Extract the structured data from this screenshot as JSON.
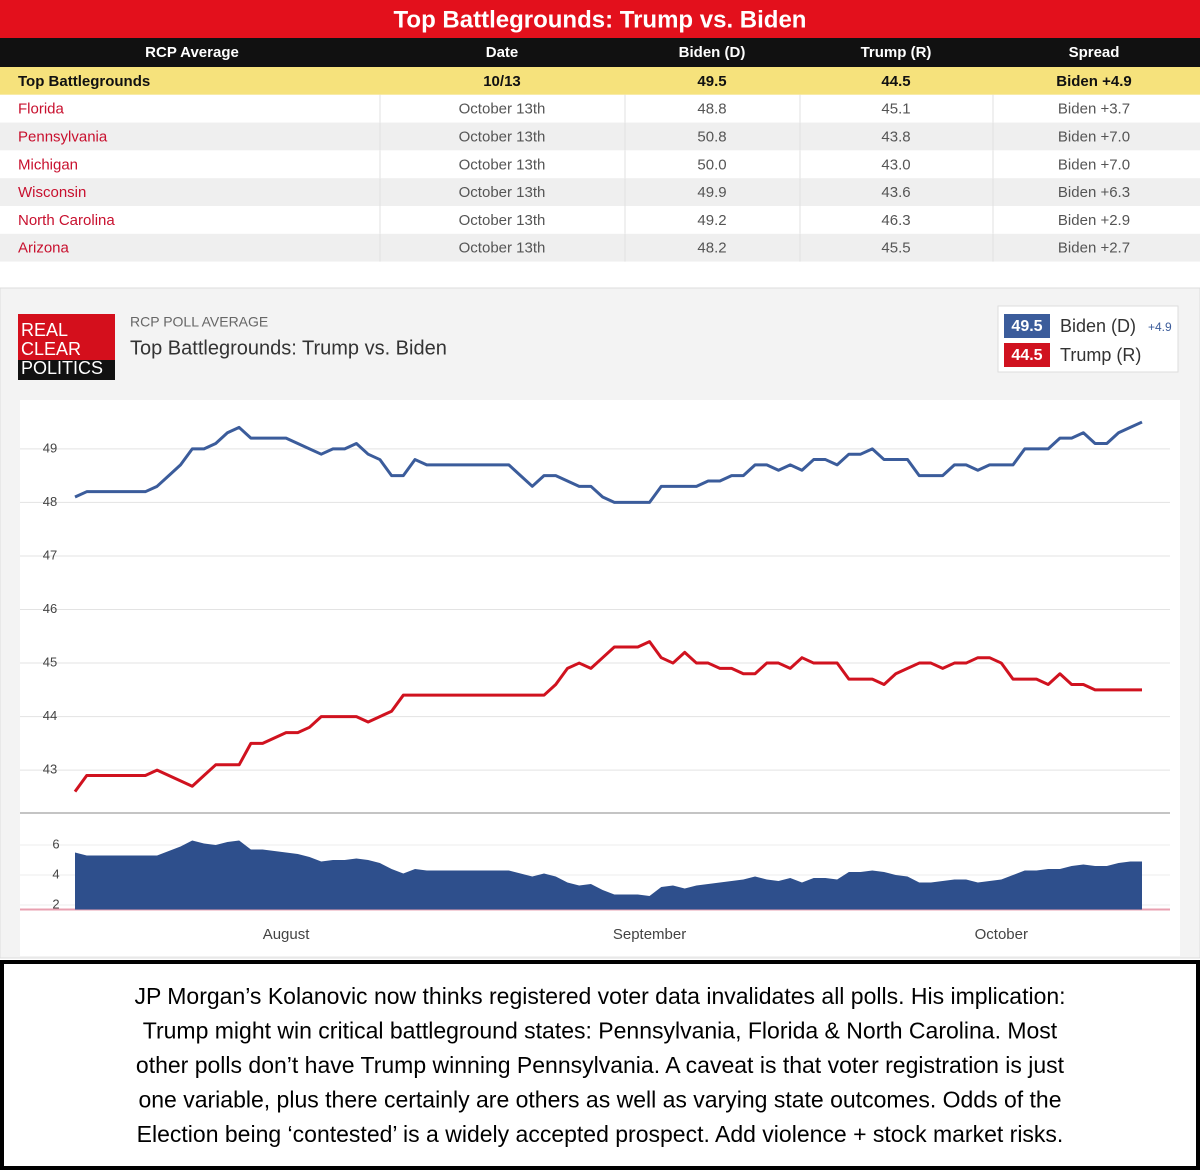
{
  "table": {
    "title": "Top Battlegrounds: Trump vs. Biden",
    "header": [
      "RCP Average",
      "Date",
      "Biden (D)",
      "Trump (R)",
      "Spread"
    ],
    "rows": [
      [
        "Top Battlegrounds",
        "10/13",
        "49.5",
        "44.5",
        "Biden +4.9"
      ],
      [
        "Florida",
        "October 13th",
        "48.8",
        "45.1",
        "Biden +3.7"
      ],
      [
        "Pennsylvania",
        "October 13th",
        "50.8",
        "43.8",
        "Biden +7.0"
      ],
      [
        "Michigan",
        "October 13th",
        "50.0",
        "43.0",
        "Biden +7.0"
      ],
      [
        "Wisconsin",
        "October 13th",
        "49.9",
        "43.6",
        "Biden +6.3"
      ],
      [
        "North Carolina",
        "October 13th",
        "49.2",
        "46.3",
        "Biden +2.9"
      ],
      [
        "Arizona",
        "October 13th",
        "48.2",
        "45.5",
        "Biden +2.7"
      ]
    ]
  },
  "logo": [
    "REAL",
    "CLEAR",
    "POLITICS"
  ],
  "chart_data": {
    "type": "line",
    "subtitle": "RCP POLL AVERAGE",
    "title": "Top Battlegrounds: Trump vs. Biden",
    "categories": [
      null,
      null,
      null,
      null,
      null,
      null,
      null,
      null,
      null,
      null,
      null,
      null,
      null,
      null,
      null,
      null,
      null,
      null,
      "August",
      null,
      null,
      null,
      null,
      null,
      null,
      null,
      null,
      null,
      null,
      null,
      null,
      null,
      null,
      null,
      null,
      null,
      null,
      null,
      null,
      null,
      null,
      null,
      null,
      null,
      null,
      null,
      null,
      null,
      null,
      "September",
      null,
      null,
      null,
      null,
      null,
      null,
      null,
      null,
      null,
      null,
      null,
      null,
      null,
      null,
      null,
      null,
      null,
      null,
      null,
      null,
      null,
      null,
      null,
      null,
      null,
      null,
      null,
      null,
      null,
      "October",
      null,
      null,
      null,
      null,
      null,
      null,
      null,
      null,
      null,
      null,
      null,
      null
    ],
    "series": [
      {
        "name": "Biden (D)",
        "color": "#3b5c9b",
        "latest": "49.5",
        "spread_label": "+4.9",
        "values": [
          48.1,
          48.2,
          48.2,
          48.2,
          48.2,
          48.2,
          48.2,
          48.3,
          48.5,
          48.7,
          49.0,
          49.0,
          49.1,
          49.3,
          49.4,
          49.2,
          49.2,
          49.2,
          49.2,
          49.1,
          49.0,
          48.9,
          49.0,
          49.0,
          49.1,
          48.9,
          48.8,
          48.5,
          48.5,
          48.8,
          48.7,
          48.7,
          48.7,
          48.7,
          48.7,
          48.7,
          48.7,
          48.7,
          48.5,
          48.3,
          48.5,
          48.5,
          48.4,
          48.3,
          48.3,
          48.1,
          48.0,
          48.0,
          48.0,
          48.0,
          48.3,
          48.3,
          48.3,
          48.3,
          48.4,
          48.4,
          48.5,
          48.5,
          48.7,
          48.7,
          48.6,
          48.7,
          48.6,
          48.8,
          48.8,
          48.7,
          48.9,
          48.9,
          49.0,
          48.8,
          48.8,
          48.8,
          48.5,
          48.5,
          48.5,
          48.7,
          48.7,
          48.6,
          48.7,
          48.7,
          48.7,
          49.0,
          49.0,
          49.0,
          49.2,
          49.2,
          49.3,
          49.1,
          49.1,
          49.3,
          49.4,
          49.5
        ]
      },
      {
        "name": "Trump (R)",
        "color": "#d0121f",
        "latest": "44.5",
        "values": [
          42.6,
          42.9,
          42.9,
          42.9,
          42.9,
          42.9,
          42.9,
          43.0,
          42.9,
          42.8,
          42.7,
          42.9,
          43.1,
          43.1,
          43.1,
          43.5,
          43.5,
          43.6,
          43.7,
          43.7,
          43.8,
          44.0,
          44.0,
          44.0,
          44.0,
          43.9,
          44.0,
          44.1,
          44.4,
          44.4,
          44.4,
          44.4,
          44.4,
          44.4,
          44.4,
          44.4,
          44.4,
          44.4,
          44.4,
          44.4,
          44.4,
          44.6,
          44.9,
          45.0,
          44.9,
          45.1,
          45.3,
          45.3,
          45.3,
          45.4,
          45.1,
          45.0,
          45.2,
          45.0,
          45.0,
          44.9,
          44.9,
          44.8,
          44.8,
          45.0,
          45.0,
          44.9,
          45.1,
          45.0,
          45.0,
          45.0,
          44.7,
          44.7,
          44.7,
          44.6,
          44.8,
          44.9,
          45.0,
          45.0,
          44.9,
          45.0,
          45.0,
          45.1,
          45.1,
          45.0,
          44.7,
          44.7,
          44.7,
          44.6,
          44.8,
          44.6,
          44.6,
          44.5,
          44.5,
          44.5,
          44.5,
          44.5
        ]
      },
      {
        "axis": "y2",
        "kind": "area",
        "color": "#2e4f8c",
        "values": [
          5.5,
          5.3,
          5.3,
          5.3,
          5.3,
          5.3,
          5.3,
          5.3,
          5.6,
          5.9,
          6.3,
          6.1,
          6.0,
          6.2,
          6.3,
          5.7,
          5.7,
          5.6,
          5.5,
          5.4,
          5.2,
          4.9,
          5.0,
          5.0,
          5.1,
          5.0,
          4.8,
          4.4,
          4.1,
          4.4,
          4.3,
          4.3,
          4.3,
          4.3,
          4.3,
          4.3,
          4.3,
          4.3,
          4.1,
          3.9,
          4.1,
          3.9,
          3.5,
          3.3,
          3.4,
          3.0,
          2.7,
          2.7,
          2.7,
          2.6,
          3.2,
          3.3,
          3.1,
          3.3,
          3.4,
          3.5,
          3.6,
          3.7,
          3.9,
          3.7,
          3.6,
          3.8,
          3.5,
          3.8,
          3.8,
          3.7,
          4.2,
          4.2,
          4.3,
          4.2,
          4.0,
          3.9,
          3.5,
          3.5,
          3.6,
          3.7,
          3.7,
          3.5,
          3.6,
          3.7,
          4.0,
          4.3,
          4.3,
          4.4,
          4.4,
          4.6,
          4.7,
          4.6,
          4.6,
          4.8,
          4.9,
          4.9
        ]
      }
    ],
    "ylim": [
      42.2,
      49.8
    ],
    "yticks": [
      43,
      44,
      45,
      46,
      47,
      48,
      49
    ],
    "y2lim": [
      1.7,
      7.3
    ],
    "y2ticks": [
      2,
      4,
      6
    ],
    "grid": true
  },
  "caption": [
    "JP Morgan’s Kolanovic now thinks registered voter data invalidates all polls. His implication:",
    "Trump might win critical battleground states: Pennsylvania, Florida & North Carolina. Most",
    "other polls don’t have Trump winning Pennsylvania. A caveat is that voter registration is just",
    "one variable, plus there certainly are others as well as varying state outcomes. Odds of the",
    "Election being ‘contested’ is a widely accepted prospect. Add violence + stock market risks."
  ]
}
